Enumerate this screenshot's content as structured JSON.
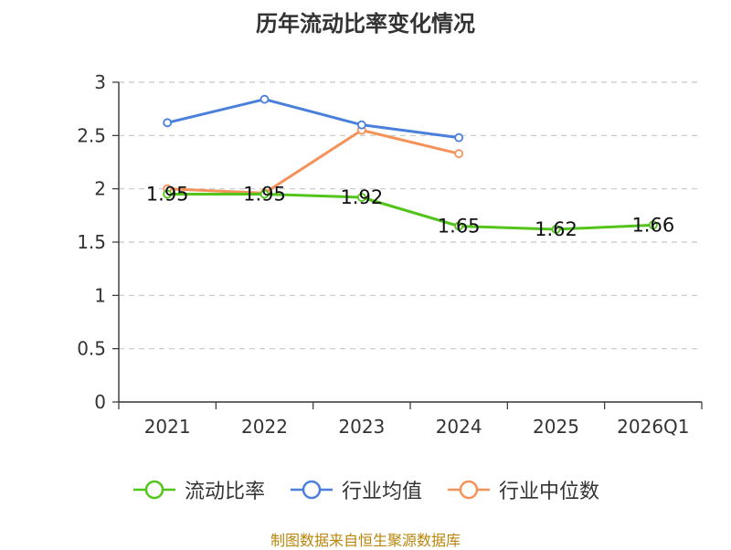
{
  "chart_data": {
    "type": "line",
    "title": "历年流动比率变化情况",
    "categories": [
      "2021",
      "2022",
      "2023",
      "2024",
      "2025",
      "2026Q1"
    ],
    "ylim": [
      0,
      3
    ],
    "yticks": [
      0,
      0.5,
      1,
      1.5,
      2,
      2.5,
      3
    ],
    "ytick_labels": [
      "0",
      "0.5",
      "1",
      "1.5",
      "2",
      "2.5",
      "3"
    ],
    "grid": true,
    "legend_position": "bottom",
    "series": [
      {
        "name": "流动比率",
        "color": "#52c41a",
        "values": [
          1.95,
          1.95,
          1.92,
          1.65,
          1.62,
          1.66
        ],
        "labels": [
          "1.95",
          "1.95",
          "1.92",
          "1.65",
          "1.62",
          "1.66"
        ]
      },
      {
        "name": "行业均值",
        "color": "#4a7fdb",
        "values": [
          2.62,
          2.84,
          2.6,
          2.48,
          null,
          null
        ]
      },
      {
        "name": "行业中位数",
        "color": "#f4925a",
        "values": [
          2.0,
          1.96,
          2.55,
          2.33,
          null,
          null
        ]
      }
    ]
  },
  "source": "制图数据来自恒生聚源数据库"
}
